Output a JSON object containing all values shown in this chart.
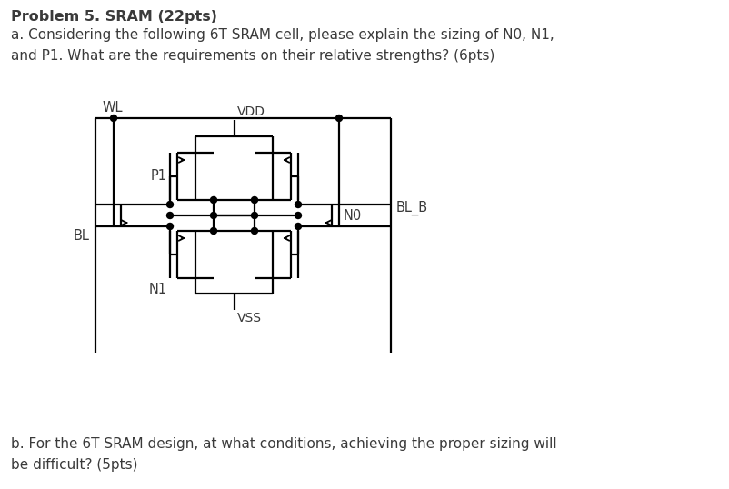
{
  "title": "Problem 5. SRAM (22pts)",
  "text_a": "a. Considering the following 6T SRAM cell, please explain the sizing of N0, N1,\nand P1. What are the requirements on their relative strengths? (6pts)",
  "text_b": "b. For the 6T SRAM design, at what conditions, achieving the proper sizing will\nbe difficult? (5pts)",
  "label_WL": "WL",
  "label_VDD": "VDD",
  "label_VSS": "VSS",
  "label_BL": "BL",
  "label_BL_B": "BL_B",
  "label_N0": "N0",
  "label_N1": "N1",
  "label_P1": "P1",
  "bg_color": "#ffffff",
  "text_color": "#3a3a3a",
  "line_color": "#000000",
  "title_fontsize": 11.5,
  "body_fontsize": 11.0
}
